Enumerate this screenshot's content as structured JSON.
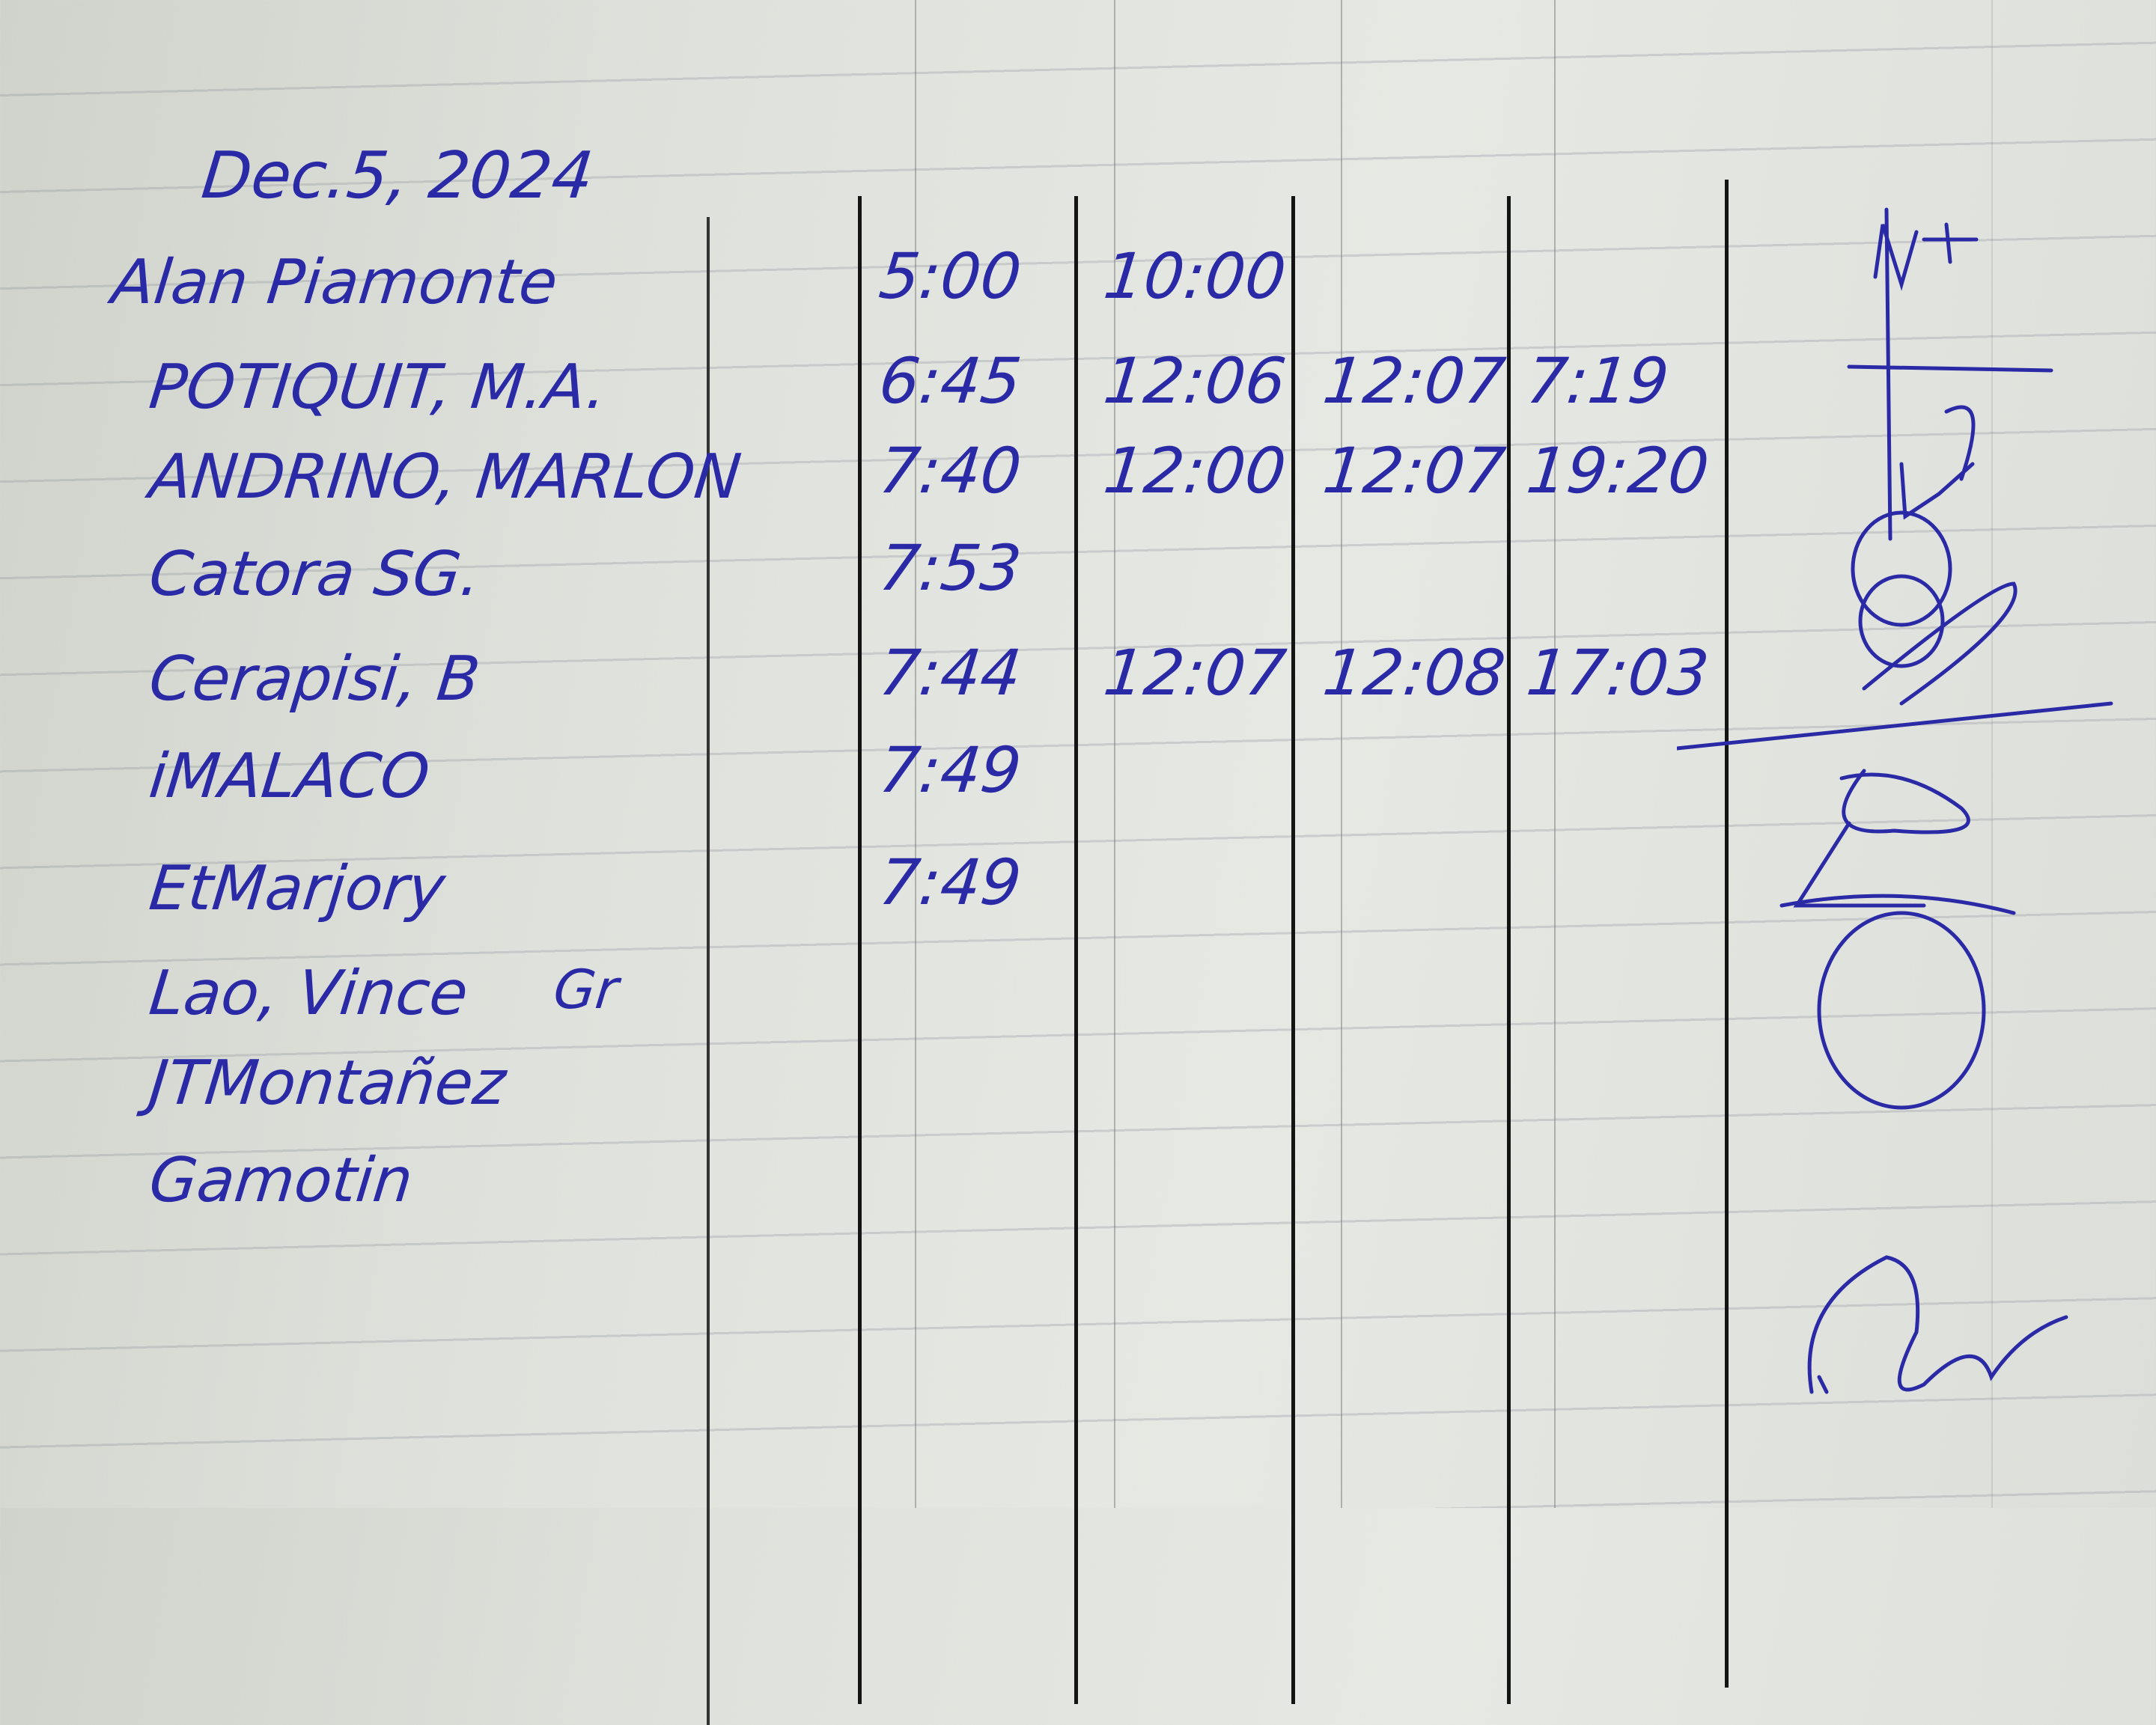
{
  "page": {
    "date": "Dec.5, 2024",
    "ink_color": "#2b2aa6",
    "paper_color": "#e2e4df"
  },
  "rows": [
    {
      "name": "Alan Piamonte",
      "times": [
        "5:00",
        "10:00",
        "",
        ""
      ]
    },
    {
      "name": "POTIQUIT, M.A.",
      "times": [
        "6:45",
        "12:06",
        "12:07",
        "7:19"
      ]
    },
    {
      "name": "ANDRINO, MARLON",
      "times": [
        "7:40",
        "12:00",
        "12:07",
        "19:20"
      ]
    },
    {
      "name": "Catora SG.",
      "times": [
        "7:53",
        "",
        "",
        ""
      ]
    },
    {
      "name": "Cerapisi, B",
      "times": [
        "7:44",
        "12:07",
        "12:08",
        "17:03"
      ]
    },
    {
      "name": "iMALACO",
      "times": [
        "7:49",
        "",
        "",
        ""
      ]
    },
    {
      "name": "EtMarjory",
      "times": [
        "7:49",
        "",
        "",
        ""
      ]
    },
    {
      "name": "Lao, Vince",
      "times": [
        "",
        "",
        "",
        ""
      ],
      "note": "Gr"
    },
    {
      "name": "JTMontañez",
      "times": [
        "",
        "",
        "",
        ""
      ]
    },
    {
      "name": "Gamotin",
      "times": [
        "",
        "",
        "",
        ""
      ]
    }
  ]
}
